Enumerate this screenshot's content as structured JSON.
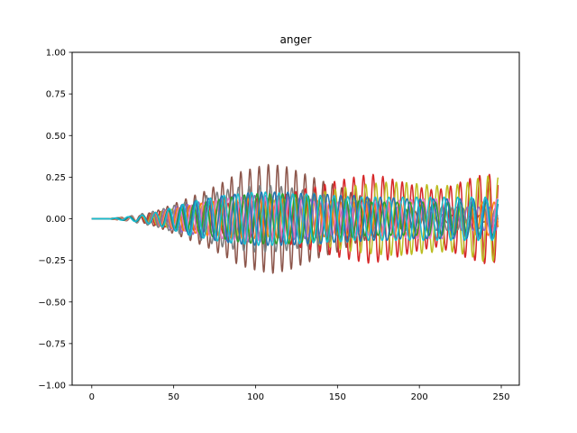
{
  "chart_data": {
    "type": "line",
    "title": "anger",
    "xlabel": "",
    "ylabel": "",
    "xlim": [
      -12,
      261
    ],
    "ylim": [
      -1.0,
      1.0
    ],
    "grid": false,
    "legend": "none",
    "x_ticks": [
      0,
      50,
      100,
      150,
      200,
      250
    ],
    "x_tick_labels": [
      "0",
      "50",
      "100",
      "150",
      "200",
      "250"
    ],
    "y_ticks": [
      -1.0,
      -0.75,
      -0.5,
      -0.25,
      0.0,
      0.25,
      0.5,
      0.75,
      1.0
    ],
    "y_tick_labels": [
      "−1.00",
      "−0.75",
      "−0.50",
      "−0.25",
      "0.00",
      "0.25",
      "0.50",
      "0.75",
      "1.00"
    ],
    "x_range": [
      0,
      248
    ],
    "series": [
      {
        "color": "#8c564b",
        "envelope": [
          [
            0,
            0
          ],
          [
            10,
            0
          ],
          [
            20,
            0.01
          ],
          [
            30,
            0.02
          ],
          [
            40,
            0.05
          ],
          [
            50,
            0.09
          ],
          [
            60,
            0.13
          ],
          [
            70,
            0.17
          ],
          [
            80,
            0.22
          ],
          [
            90,
            0.28
          ],
          [
            100,
            0.31
          ],
          [
            110,
            0.33
          ],
          [
            120,
            0.31
          ],
          [
            130,
            0.27
          ],
          [
            140,
            0.23
          ],
          [
            150,
            0.2
          ],
          [
            160,
            0.15
          ],
          [
            170,
            0.12
          ],
          [
            180,
            0.08
          ],
          [
            190,
            0.06
          ],
          [
            200,
            0.04
          ],
          [
            210,
            0.03
          ],
          [
            220,
            0.02
          ],
          [
            230,
            0.02
          ],
          [
            240,
            0.02
          ],
          [
            248,
            0.02
          ]
        ]
      },
      {
        "color": "#d62728",
        "envelope": [
          [
            0,
            0
          ],
          [
            10,
            0
          ],
          [
            20,
            0.01
          ],
          [
            30,
            0.02
          ],
          [
            40,
            0.04
          ],
          [
            50,
            0.06
          ],
          [
            60,
            0.07
          ],
          [
            70,
            0.08
          ],
          [
            80,
            0.09
          ],
          [
            90,
            0.1
          ],
          [
            100,
            0.12
          ],
          [
            110,
            0.13
          ],
          [
            120,
            0.15
          ],
          [
            130,
            0.18
          ],
          [
            140,
            0.2
          ],
          [
            150,
            0.23
          ],
          [
            160,
            0.25
          ],
          [
            170,
            0.27
          ],
          [
            180,
            0.25
          ],
          [
            190,
            0.22
          ],
          [
            200,
            0.19
          ],
          [
            210,
            0.17
          ],
          [
            220,
            0.2
          ],
          [
            230,
            0.24
          ],
          [
            240,
            0.27
          ],
          [
            248,
            0.26
          ]
        ]
      },
      {
        "color": "#bcbd22",
        "envelope": [
          [
            0,
            0
          ],
          [
            10,
            0
          ],
          [
            20,
            0.01
          ],
          [
            30,
            0.02
          ],
          [
            40,
            0.04
          ],
          [
            50,
            0.06
          ],
          [
            60,
            0.08
          ],
          [
            70,
            0.09
          ],
          [
            80,
            0.1
          ],
          [
            90,
            0.1
          ],
          [
            100,
            0.11
          ],
          [
            110,
            0.11
          ],
          [
            120,
            0.12
          ],
          [
            130,
            0.14
          ],
          [
            140,
            0.16
          ],
          [
            150,
            0.18
          ],
          [
            160,
            0.2
          ],
          [
            170,
            0.21
          ],
          [
            180,
            0.22
          ],
          [
            190,
            0.22
          ],
          [
            200,
            0.21
          ],
          [
            210,
            0.2
          ],
          [
            220,
            0.2
          ],
          [
            230,
            0.22
          ],
          [
            240,
            0.26
          ],
          [
            248,
            0.25
          ]
        ]
      },
      {
        "color": "#7f7f7f",
        "envelope": [
          [
            0,
            0
          ],
          [
            10,
            0
          ],
          [
            20,
            0.01
          ],
          [
            30,
            0.03
          ],
          [
            40,
            0.05
          ],
          [
            50,
            0.08
          ],
          [
            60,
            0.11
          ],
          [
            70,
            0.14
          ],
          [
            80,
            0.17
          ],
          [
            90,
            0.19
          ],
          [
            100,
            0.2
          ],
          [
            110,
            0.2
          ],
          [
            120,
            0.19
          ],
          [
            130,
            0.17
          ],
          [
            140,
            0.15
          ],
          [
            150,
            0.13
          ],
          [
            160,
            0.11
          ],
          [
            170,
            0.1
          ],
          [
            180,
            0.09
          ],
          [
            190,
            0.08
          ],
          [
            200,
            0.07
          ],
          [
            210,
            0.07
          ],
          [
            220,
            0.07
          ],
          [
            230,
            0.06
          ],
          [
            240,
            0.06
          ],
          [
            248,
            0.06
          ]
        ]
      },
      {
        "color": "#9467bd",
        "envelope": [
          [
            0,
            0
          ],
          [
            10,
            0
          ],
          [
            20,
            0.01
          ],
          [
            30,
            0.02
          ],
          [
            40,
            0.04
          ],
          [
            50,
            0.07
          ],
          [
            60,
            0.09
          ],
          [
            70,
            0.11
          ],
          [
            80,
            0.13
          ],
          [
            90,
            0.14
          ],
          [
            100,
            0.14
          ],
          [
            110,
            0.14
          ],
          [
            120,
            0.13
          ],
          [
            130,
            0.12
          ],
          [
            140,
            0.11
          ],
          [
            150,
            0.1
          ],
          [
            160,
            0.09
          ],
          [
            170,
            0.08
          ],
          [
            180,
            0.08
          ],
          [
            190,
            0.07
          ],
          [
            200,
            0.07
          ],
          [
            210,
            0.07
          ],
          [
            220,
            0.07
          ],
          [
            230,
            0.07
          ],
          [
            240,
            0.07
          ],
          [
            248,
            0.07
          ]
        ]
      },
      {
        "color": "#ff7f0e",
        "envelope": [
          [
            0,
            0
          ],
          [
            10,
            0
          ],
          [
            20,
            0.01
          ],
          [
            30,
            0.02
          ],
          [
            40,
            0.04
          ],
          [
            50,
            0.06
          ],
          [
            60,
            0.08
          ],
          [
            70,
            0.1
          ],
          [
            80,
            0.11
          ],
          [
            90,
            0.12
          ],
          [
            100,
            0.12
          ],
          [
            110,
            0.12
          ],
          [
            120,
            0.12
          ],
          [
            130,
            0.11
          ],
          [
            140,
            0.11
          ],
          [
            150,
            0.1
          ],
          [
            160,
            0.1
          ],
          [
            170,
            0.1
          ],
          [
            180,
            0.1
          ],
          [
            190,
            0.1
          ],
          [
            200,
            0.1
          ],
          [
            210,
            0.1
          ],
          [
            220,
            0.1
          ],
          [
            230,
            0.1
          ],
          [
            240,
            0.1
          ],
          [
            248,
            0.1
          ]
        ]
      },
      {
        "color": "#e377c2",
        "envelope": [
          [
            0,
            0
          ],
          [
            10,
            0
          ],
          [
            20,
            0.01
          ],
          [
            30,
            0.02
          ],
          [
            40,
            0.04
          ],
          [
            50,
            0.06
          ],
          [
            60,
            0.08
          ],
          [
            70,
            0.1
          ],
          [
            80,
            0.12
          ],
          [
            90,
            0.13
          ],
          [
            100,
            0.13
          ],
          [
            110,
            0.13
          ],
          [
            120,
            0.12
          ],
          [
            130,
            0.11
          ],
          [
            140,
            0.1
          ],
          [
            150,
            0.1
          ],
          [
            160,
            0.1
          ],
          [
            170,
            0.1
          ],
          [
            180,
            0.11
          ],
          [
            190,
            0.11
          ],
          [
            200,
            0.12
          ],
          [
            210,
            0.12
          ],
          [
            220,
            0.12
          ],
          [
            230,
            0.12
          ],
          [
            240,
            0.12
          ],
          [
            248,
            0.12
          ]
        ]
      },
      {
        "color": "#2ca02c",
        "envelope": [
          [
            0,
            0
          ],
          [
            10,
            0
          ],
          [
            20,
            0.01
          ],
          [
            30,
            0.02
          ],
          [
            40,
            0.04
          ],
          [
            50,
            0.06
          ],
          [
            60,
            0.08
          ],
          [
            70,
            0.1
          ],
          [
            80,
            0.12
          ],
          [
            90,
            0.14
          ],
          [
            100,
            0.15
          ],
          [
            110,
            0.15
          ],
          [
            120,
            0.15
          ],
          [
            130,
            0.14
          ],
          [
            140,
            0.13
          ],
          [
            150,
            0.12
          ],
          [
            160,
            0.11
          ],
          [
            170,
            0.1
          ],
          [
            180,
            0.1
          ],
          [
            190,
            0.1
          ],
          [
            200,
            0.1
          ],
          [
            210,
            0.1
          ],
          [
            220,
            0.1
          ],
          [
            230,
            0.1
          ],
          [
            240,
            0.1
          ],
          [
            248,
            0.1
          ]
        ]
      },
      {
        "color": "#1f77b4",
        "envelope": [
          [
            0,
            0
          ],
          [
            10,
            0
          ],
          [
            20,
            0.01
          ],
          [
            30,
            0.02
          ],
          [
            40,
            0.04
          ],
          [
            50,
            0.07
          ],
          [
            60,
            0.1
          ],
          [
            70,
            0.12
          ],
          [
            80,
            0.14
          ],
          [
            90,
            0.15
          ],
          [
            100,
            0.16
          ],
          [
            110,
            0.16
          ],
          [
            120,
            0.16
          ],
          [
            130,
            0.15
          ],
          [
            140,
            0.15
          ],
          [
            150,
            0.14
          ],
          [
            160,
            0.14
          ],
          [
            170,
            0.13
          ],
          [
            180,
            0.13
          ],
          [
            190,
            0.12
          ],
          [
            200,
            0.12
          ],
          [
            210,
            0.12
          ],
          [
            220,
            0.12
          ],
          [
            230,
            0.12
          ],
          [
            240,
            0.12
          ],
          [
            248,
            0.12
          ]
        ]
      },
      {
        "color": "#17becf",
        "envelope": [
          [
            0,
            0
          ],
          [
            10,
            0
          ],
          [
            20,
            0.01
          ],
          [
            30,
            0.02
          ],
          [
            40,
            0.04
          ],
          [
            50,
            0.07
          ],
          [
            60,
            0.1
          ],
          [
            70,
            0.12
          ],
          [
            80,
            0.14
          ],
          [
            90,
            0.15
          ],
          [
            100,
            0.16
          ],
          [
            110,
            0.16
          ],
          [
            120,
            0.15
          ],
          [
            130,
            0.15
          ],
          [
            140,
            0.14
          ],
          [
            150,
            0.14
          ],
          [
            160,
            0.13
          ],
          [
            170,
            0.13
          ],
          [
            180,
            0.13
          ],
          [
            190,
            0.13
          ],
          [
            200,
            0.13
          ],
          [
            210,
            0.13
          ],
          [
            220,
            0.13
          ],
          [
            230,
            0.13
          ],
          [
            240,
            0.13
          ],
          [
            248,
            0.13
          ]
        ]
      }
    ]
  }
}
